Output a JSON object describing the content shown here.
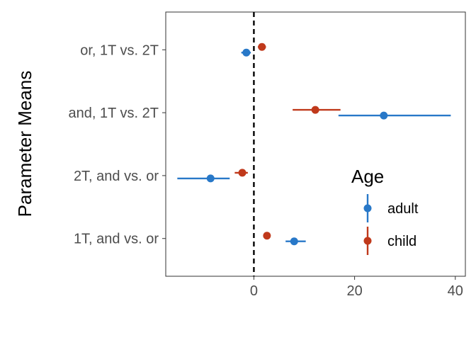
{
  "chart_data": {
    "type": "scatter",
    "subtype": "point-range (dot and whisker), horizontal",
    "title": "",
    "xlabel": "",
    "ylabel": "Parameter Means",
    "xlim": [
      -17.5,
      42
    ],
    "x_ticks": [
      0,
      20,
      40
    ],
    "x_tick_labels": [
      "0",
      "20",
      "40"
    ],
    "categories": [
      "1T, and vs. or",
      "2T, and vs. or",
      "and, 1T vs. 2T",
      "or, 1T vs. 2T"
    ],
    "reference_line": {
      "x": 0,
      "style": "dashed",
      "color": "#000000"
    },
    "grid": false,
    "legend": {
      "title": "Age",
      "position": "inside-bottom-right",
      "entries": [
        "adult",
        "child"
      ]
    },
    "series": [
      {
        "name": "adult",
        "color": "#2878c8",
        "points": [
          {
            "category": "1T, and vs. or",
            "mean": 8.0,
            "low": 6.3,
            "high": 10.3
          },
          {
            "category": "2T, and vs. or",
            "mean": -8.6,
            "low": -15.2,
            "high": -4.8
          },
          {
            "category": "and, 1T vs. 2T",
            "mean": 25.8,
            "low": 16.8,
            "high": 39.1
          },
          {
            "category": "or, 1T vs. 2T",
            "mean": -1.5,
            "low": -2.5,
            "high": -0.6
          }
        ]
      },
      {
        "name": "child",
        "color": "#c0391b",
        "points": [
          {
            "category": "1T, and vs. or",
            "mean": 2.6,
            "low": 2.3,
            "high": 2.9
          },
          {
            "category": "2T, and vs. or",
            "mean": -2.3,
            "low": -3.8,
            "high": -1.2
          },
          {
            "category": "and, 1T vs. 2T",
            "mean": 12.2,
            "low": 7.7,
            "high": 17.2
          },
          {
            "category": "or, 1T vs. 2T",
            "mean": 1.6,
            "low": 0.8,
            "high": 2.4
          }
        ]
      }
    ]
  }
}
